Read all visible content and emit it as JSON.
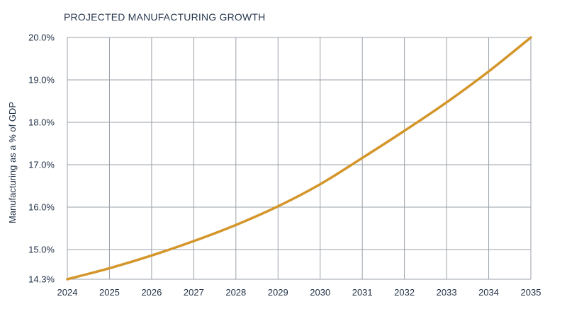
{
  "chart_data": {
    "type": "line",
    "title": "PROJECTED MANUFACTURING GROWTH",
    "xlabel": "",
    "ylabel": "Manufacturing as a % of GDP",
    "x": [
      2024,
      2025,
      2026,
      2027,
      2028,
      2029,
      2030,
      2031,
      2032,
      2033,
      2034,
      2035
    ],
    "x_tick_labels": [
      "2024",
      "2025",
      "2026",
      "2027",
      "2028",
      "2029",
      "2030",
      "2031",
      "2032",
      "2033",
      "2034",
      "2035"
    ],
    "ylim": [
      14.3,
      20.0
    ],
    "y_ticks": [
      14.3,
      15.0,
      16.0,
      17.0,
      18.0,
      19.0,
      20.0
    ],
    "y_tick_labels": [
      "14.3%",
      "15.0%",
      "16.0%",
      "17.0%",
      "18.0%",
      "19.0%",
      "20.0%"
    ],
    "grid": true,
    "series": [
      {
        "name": "",
        "color": "#d4962a",
        "values": [
          14.3,
          14.56,
          14.86,
          15.2,
          15.58,
          16.02,
          16.54,
          17.16,
          17.8,
          18.47,
          19.2,
          20.0
        ]
      }
    ]
  }
}
